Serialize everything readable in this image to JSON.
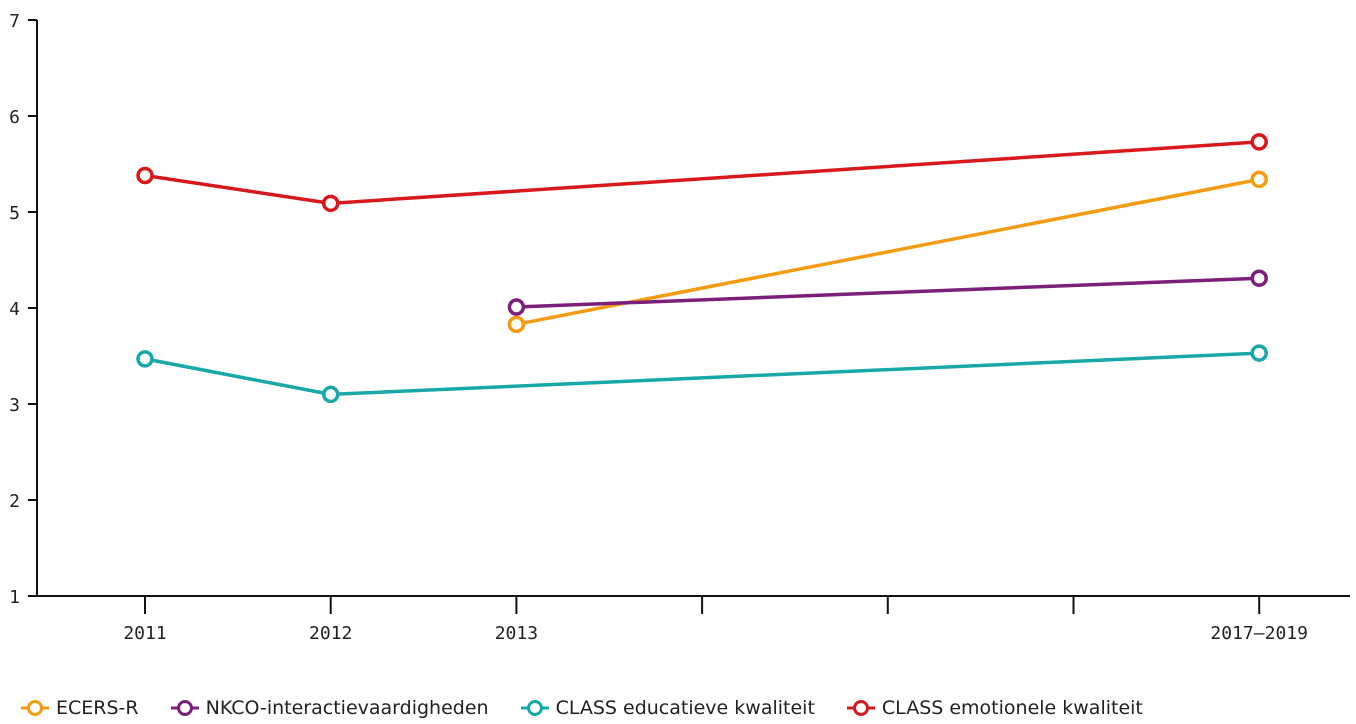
{
  "chart_data": {
    "type": "line",
    "categories": [
      "2011",
      "2012",
      "2013",
      "",
      "",
      "",
      "2017-2019"
    ],
    "x_tick_labels": [
      "2011",
      "2012",
      "2013",
      "",
      "",
      "",
      "2017–2019"
    ],
    "ylim": [
      1,
      7
    ],
    "y_ticks": [
      "1",
      "2",
      "3",
      "4",
      "5",
      "6",
      "7"
    ],
    "grid": false,
    "legend_placement": "bottom",
    "series": [
      {
        "name": "ECERS-R",
        "color": "#f39c12",
        "values": [
          null,
          null,
          3.83,
          null,
          null,
          null,
          5.34
        ]
      },
      {
        "name": "NKCO-interactievaardigheden",
        "color": "#7b1f7b",
        "values": [
          null,
          null,
          4.01,
          null,
          null,
          null,
          4.31
        ]
      },
      {
        "name": "CLASS educatieve kwaliteit",
        "color": "#19a8a8",
        "values": [
          3.47,
          3.1,
          null,
          null,
          null,
          null,
          3.53
        ]
      },
      {
        "name": "CLASS emotionele kwaliteit",
        "color": "#d7191c",
        "values": [
          5.38,
          5.09,
          null,
          null,
          null,
          null,
          5.73
        ]
      }
    ]
  }
}
